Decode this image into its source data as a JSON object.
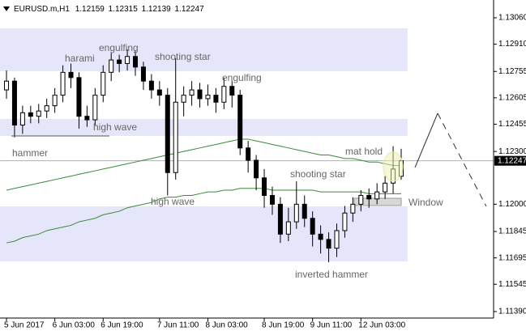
{
  "chart_data": {
    "type": "candlestick",
    "symbol": "EURUSD.m,H1",
    "header_ohlc": [
      1.12159,
      1.12315,
      1.12139,
      1.12247
    ],
    "last_price": 1.12247,
    "categories": [
      "5 Jun 2017",
      null,
      null,
      null,
      null,
      null,
      "6 Jun 03:00",
      null,
      null,
      null,
      null,
      null,
      "6 Jun 19:00",
      null,
      null,
      null,
      null,
      null,
      null,
      "7 Jun 11:00",
      null,
      null,
      null,
      null,
      null,
      "8 Jun 03:00",
      null,
      null,
      null,
      null,
      null,
      null,
      "8 Jun 19:00",
      null,
      null,
      null,
      null,
      null,
      "9 Jun 11:00",
      null,
      null,
      null,
      null,
      null,
      "12 Jun 03:00",
      null,
      null,
      null,
      null,
      null
    ],
    "open": [
      1.1265,
      1.127,
      1.1245,
      1.1252,
      1.125,
      1.1253,
      1.1256,
      1.1262,
      1.1275,
      1.1272,
      1.125,
      1.1248,
      1.1262,
      1.1275,
      1.1282,
      1.128,
      1.1284,
      1.1278,
      1.127,
      1.1265,
      1.1262,
      1.1218,
      1.1258,
      1.1262,
      1.1265,
      1.126,
      1.1262,
      1.1258,
      1.1267,
      1.1262,
      1.1232,
      1.1225,
      1.1215,
      1.1205,
      1.12,
      1.1183,
      1.119,
      1.12,
      1.1192,
      1.1183,
      1.118,
      1.1175,
      1.1185,
      1.1195,
      1.12,
      1.1205,
      1.1203,
      1.1207,
      1.1212,
      1.12159
    ],
    "high": [
      1.1276,
      1.1272,
      1.1256,
      1.1256,
      1.1257,
      1.126,
      1.1266,
      1.1279,
      1.128,
      1.1275,
      1.1256,
      1.1266,
      1.1279,
      1.1286,
      1.1285,
      1.1288,
      1.1287,
      1.1281,
      1.1274,
      1.127,
      1.1266,
      1.1283,
      1.1267,
      1.127,
      1.1269,
      1.1268,
      1.1266,
      1.1272,
      1.127,
      1.1265,
      1.1236,
      1.1228,
      1.122,
      1.121,
      1.1204,
      1.1198,
      1.1213,
      1.1205,
      1.1196,
      1.1188,
      1.1184,
      1.1189,
      1.1199,
      1.1204,
      1.1208,
      1.1209,
      1.1212,
      1.1216,
      1.1233,
      1.12315
    ],
    "low": [
      1.126,
      1.1238,
      1.124,
      1.1246,
      1.1246,
      1.1249,
      1.1252,
      1.1258,
      1.1266,
      1.1243,
      1.1244,
      1.1245,
      1.1258,
      1.127,
      1.1275,
      1.1276,
      1.1273,
      1.1265,
      1.126,
      1.1256,
      1.1205,
      1.1214,
      1.125,
      1.1256,
      1.1255,
      1.1256,
      1.1252,
      1.1254,
      1.1255,
      1.1228,
      1.1218,
      1.1208,
      1.1198,
      1.1194,
      1.1178,
      1.1179,
      1.1186,
      1.1187,
      1.1176,
      1.1172,
      1.1167,
      1.117,
      1.1181,
      1.119,
      1.1196,
      1.1198,
      1.12,
      1.1203,
      1.1206,
      1.12139
    ],
    "close": [
      1.127,
      1.1245,
      1.1252,
      1.125,
      1.1253,
      1.1256,
      1.1262,
      1.1275,
      1.1272,
      1.125,
      1.1248,
      1.1262,
      1.1275,
      1.1282,
      1.128,
      1.1284,
      1.1278,
      1.127,
      1.1265,
      1.1262,
      1.1218,
      1.1258,
      1.1262,
      1.1265,
      1.126,
      1.1262,
      1.1258,
      1.1267,
      1.1262,
      1.1232,
      1.1225,
      1.1215,
      1.1205,
      1.12,
      1.1183,
      1.119,
      1.12,
      1.1192,
      1.1183,
      1.118,
      1.1175,
      1.1185,
      1.1195,
      1.12,
      1.1205,
      1.1203,
      1.1207,
      1.1212,
      1.122,
      1.12247
    ],
    "moving_averages": [
      {
        "color": "#3a8a3a",
        "values": [
          1.1208,
          1.1209,
          1.121,
          1.1211,
          1.1212,
          1.1213,
          1.1214,
          1.1215,
          1.1216,
          1.1217,
          1.1218,
          1.1219,
          1.122,
          1.1221,
          1.1222,
          1.1223,
          1.1224,
          1.1225,
          1.1226,
          1.1227,
          1.1228,
          1.1229,
          1.123,
          1.1231,
          1.1232,
          1.1233,
          1.1234,
          1.1235,
          1.1236,
          1.1237,
          1.1237,
          1.1236,
          1.1235,
          1.1234,
          1.1233,
          1.1232,
          1.1231,
          1.123,
          1.1229,
          1.1228,
          1.1228,
          1.1227,
          1.1226,
          1.1226,
          1.1225,
          1.1224,
          1.1224,
          1.1223,
          1.1222,
          1.1222
        ]
      },
      {
        "color": "#3a8a3a",
        "values": [
          1.1178,
          1.1179,
          1.1181,
          1.1182,
          1.1183,
          1.1185,
          1.1186,
          1.1187,
          1.1188,
          1.119,
          1.1191,
          1.1192,
          1.1194,
          1.1195,
          1.1196,
          1.1198,
          1.1199,
          1.12,
          1.1201,
          1.1203,
          1.1204,
          1.1204,
          1.1205,
          1.1205,
          1.1206,
          1.1207,
          1.1207,
          1.1208,
          1.1208,
          1.1209,
          1.1209,
          1.1209,
          1.1209,
          1.1208,
          1.1208,
          1.1208,
          1.1208,
          1.1208,
          1.1208,
          1.1207,
          1.1207,
          1.1207,
          1.1207,
          1.1207,
          1.1207,
          1.1206,
          1.1206,
          1.1206,
          1.1206,
          1.1206
        ]
      }
    ],
    "zones": [
      [
        1.13,
        1.12756
      ],
      [
        1.12485,
        1.12388
      ],
      [
        1.11988,
        1.11675
      ]
    ],
    "window_zone": [
      1.12034,
      1.11993
    ],
    "annotations": [
      "harami",
      "engulfing",
      "shooting star",
      "engulfing",
      "high wave",
      "hammer",
      "mat hold",
      "shooting star",
      "high wave",
      "Window",
      "inverted hammer"
    ],
    "ylim": [
      1.11353,
      1.13161
    ],
    "yticks": [
      {
        "value": 1.1306,
        "label": "1.13060"
      },
      {
        "value": 1.1291,
        "label": "1.12910"
      },
      {
        "value": 1.12755,
        "label": "1.12755"
      },
      {
        "value": 1.12605,
        "label": "1.12605"
      },
      {
        "value": 1.12455,
        "label": "1.12455"
      },
      {
        "value": 1.123,
        "label": "1.12300"
      },
      {
        "value": 1.12,
        "label": "1.12000"
      },
      {
        "value": 1.11845,
        "label": "1.11845"
      },
      {
        "value": 1.11695,
        "label": "1.11695"
      },
      {
        "value": 1.11545,
        "label": "1.11545"
      },
      {
        "value": 1.1139,
        "label": "1.11390"
      }
    ]
  }
}
